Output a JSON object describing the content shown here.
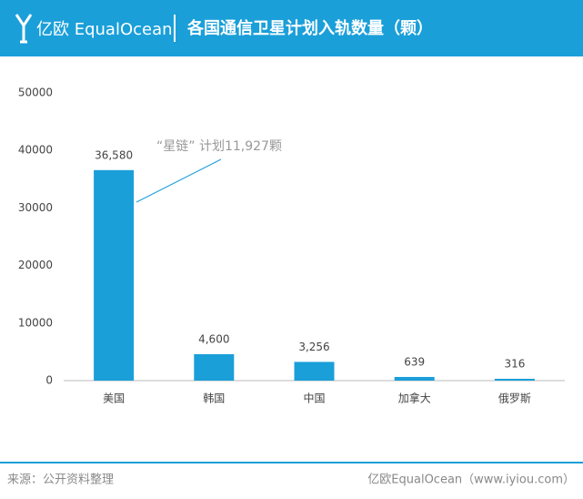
{
  "brand": "亿欧 EqualOcean",
  "chart_data": {
    "type": "bar",
    "title": "各国通信卫星计划入轨数量（颗）",
    "categories": [
      "美国",
      "韩国",
      "中国",
      "加拿大",
      "俄罗斯"
    ],
    "values": [
      36580,
      4600,
      3256,
      639,
      316
    ],
    "value_labels": [
      "36,580",
      "4,600",
      "3,256",
      "639",
      "316"
    ],
    "color": "#1a9fd9",
    "ylim": [
      0,
      50000
    ],
    "yticks": [
      0,
      10000,
      20000,
      30000,
      40000,
      50000
    ],
    "grid": false,
    "annotation": "“星链” 计划11,927颗"
  },
  "footer": {
    "source": "来源：公开资料整理",
    "credit": "亿欧EqualOcean（www.iyiou.com）"
  }
}
